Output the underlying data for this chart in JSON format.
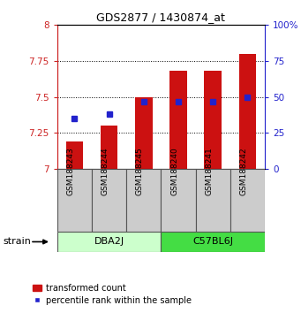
{
  "title": "GDS2877 / 1430874_at",
  "samples": [
    "GSM188243",
    "GSM188244",
    "GSM188245",
    "GSM188240",
    "GSM188241",
    "GSM188242"
  ],
  "transformed_counts": [
    7.19,
    7.3,
    7.5,
    7.68,
    7.68,
    7.8
  ],
  "percentile_ranks": [
    35,
    38,
    47,
    47,
    47,
    50
  ],
  "ylim_left": [
    7.0,
    8.0
  ],
  "ylim_right": [
    0,
    100
  ],
  "yticks_left": [
    7.0,
    7.25,
    7.5,
    7.75,
    8.0
  ],
  "ytick_labels_left": [
    "7",
    "7.25",
    "7.5",
    "7.75",
    "8"
  ],
  "yticks_right": [
    0,
    25,
    50,
    75,
    100
  ],
  "ytick_labels_right": [
    "0",
    "25",
    "50",
    "75",
    "100%"
  ],
  "bar_color": "#cc1111",
  "dot_color": "#2222cc",
  "bar_width": 0.5,
  "strain_label": "strain",
  "group_ranges": [
    [
      0,
      2,
      "DBA2J",
      "#ccffcc"
    ],
    [
      3,
      5,
      "C57BL6J",
      "#44dd44"
    ]
  ],
  "sample_bg_color": "#cccccc",
  "legend_bar_label": "transformed count",
  "legend_dot_label": "percentile rank within the sample"
}
